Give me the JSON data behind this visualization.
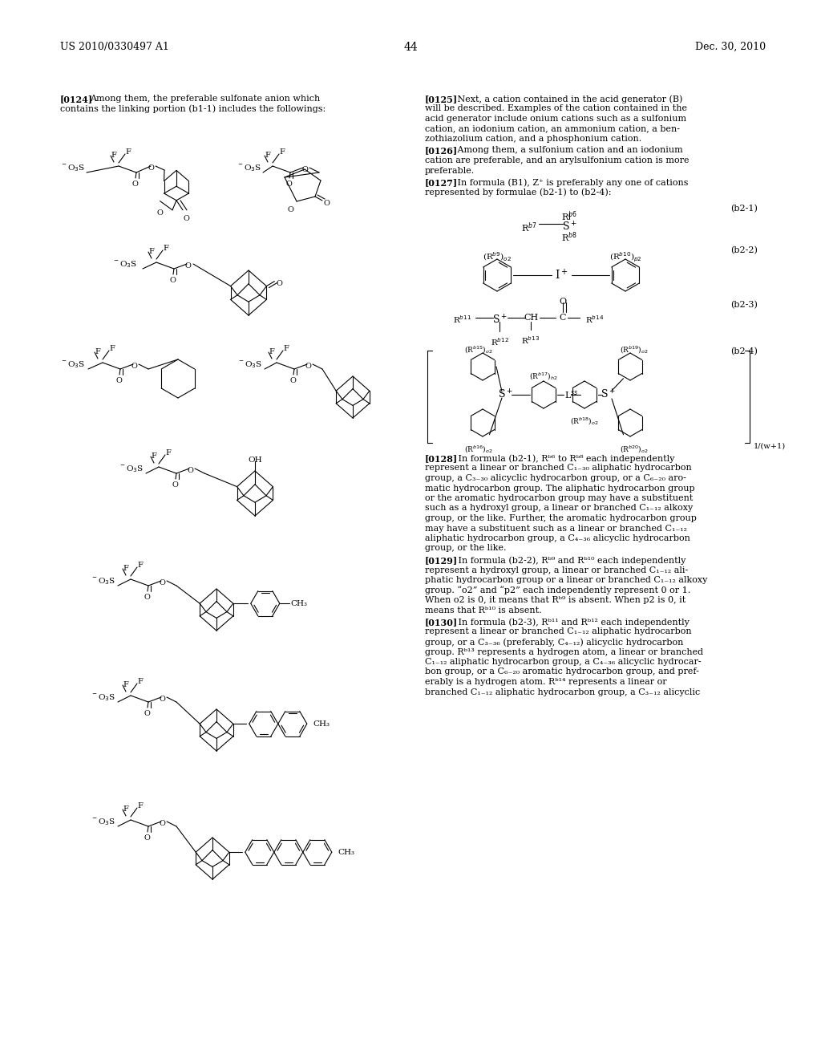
{
  "background_color": "#ffffff",
  "header_left": "US 2010/0330497 A1",
  "header_right": "Dec. 30, 2010",
  "page_number": "44"
}
